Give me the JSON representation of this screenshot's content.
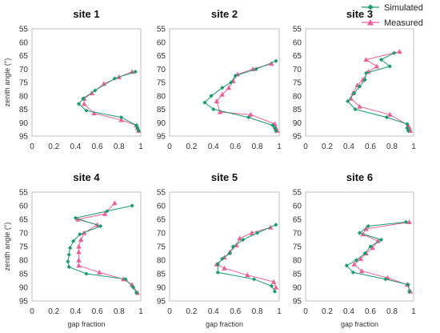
{
  "chart_data": [
    {
      "type": "line",
      "title": "site 1",
      "xlabel": "",
      "ylabel": "zenith angle (°)",
      "xlim": [
        0,
        1
      ],
      "ylim": [
        95,
        55
      ],
      "y_inverted": true,
      "xticks": [
        "0",
        "0.2",
        "0.4",
        "0.6",
        "0.8",
        "1"
      ],
      "yticks": [
        "55",
        "60",
        "65",
        "70",
        "75",
        "80",
        "85",
        "90",
        "95"
      ],
      "series": [
        {
          "name": "Simulated",
          "marker": "diamond",
          "color": "#1a9a6e",
          "points": [
            [
              0.95,
              71
            ],
            [
              0.76,
              73.5
            ],
            [
              0.58,
              78
            ],
            [
              0.47,
              81
            ],
            [
              0.43,
              83
            ],
            [
              0.5,
              85.5
            ],
            [
              0.82,
              88
            ],
            [
              0.96,
              91
            ],
            [
              0.97,
              92
            ],
            [
              0.98,
              93
            ]
          ]
        },
        {
          "name": "Measured",
          "marker": "triangle",
          "color": "#e8609a",
          "points": [
            [
              0.92,
              71
            ],
            [
              0.8,
              73
            ],
            [
              0.66,
              75.5
            ],
            [
              0.55,
              79
            ],
            [
              0.48,
              81
            ],
            [
              0.48,
              83
            ],
            [
              0.57,
              86.5
            ],
            [
              0.82,
              89
            ],
            [
              0.96,
              91
            ],
            [
              0.97,
              92
            ],
            [
              0.98,
              93
            ]
          ]
        }
      ]
    },
    {
      "type": "line",
      "title": "site 2",
      "xlabel": "",
      "ylabel": "",
      "xlim": [
        0,
        1
      ],
      "ylim": [
        95,
        55
      ],
      "y_inverted": true,
      "xticks": [
        "0",
        "0.2",
        "0.4",
        "0.6",
        "0.8",
        "1"
      ],
      "yticks": [
        "55",
        "60",
        "65",
        "70",
        "75",
        "80",
        "85",
        "90",
        "95"
      ],
      "series": [
        {
          "name": "Simulated",
          "marker": "diamond",
          "color": "#1a9a6e",
          "points": [
            [
              0.97,
              67
            ],
            [
              0.79,
              70
            ],
            [
              0.6,
              72.5
            ],
            [
              0.56,
              75
            ],
            [
              0.48,
              77
            ],
            [
              0.38,
              80
            ],
            [
              0.32,
              82.5
            ],
            [
              0.4,
              85
            ],
            [
              0.72,
              88
            ],
            [
              0.94,
              91
            ],
            [
              0.96,
              92
            ],
            [
              0.97,
              93
            ]
          ]
        },
        {
          "name": "Measured",
          "marker": "triangle",
          "color": "#e8609a",
          "points": [
            [
              0.93,
              68
            ],
            [
              0.76,
              70
            ],
            [
              0.62,
              72
            ],
            [
              0.58,
              74.5
            ],
            [
              0.54,
              77
            ],
            [
              0.48,
              79.5
            ],
            [
              0.43,
              82
            ],
            [
              0.46,
              86
            ],
            [
              0.74,
              87
            ],
            [
              0.96,
              90.5
            ],
            [
              0.97,
              92
            ],
            [
              0.98,
              93
            ]
          ]
        }
      ]
    },
    {
      "type": "line",
      "title": "site 3",
      "xlabel": "",
      "ylabel": "",
      "xlim": [
        0,
        1
      ],
      "ylim": [
        95,
        55
      ],
      "y_inverted": true,
      "xticks": [
        "0",
        "0.2",
        "0.4",
        "0.6",
        "0.8",
        "1"
      ],
      "yticks": [
        "55",
        "60",
        "65",
        "70",
        "75",
        "80",
        "85",
        "90",
        "95"
      ],
      "series": [
        {
          "name": "Simulated",
          "marker": "diamond",
          "color": "#1a9a6e",
          "points": [
            [
              0.82,
              64
            ],
            [
              0.7,
              66.5
            ],
            [
              0.78,
              69
            ],
            [
              0.56,
              71.5
            ],
            [
              0.55,
              74
            ],
            [
              0.5,
              76.5
            ],
            [
              0.45,
              79
            ],
            [
              0.39,
              82
            ],
            [
              0.46,
              85
            ],
            [
              0.75,
              88
            ],
            [
              0.94,
              90.5
            ],
            [
              0.94,
              92
            ],
            [
              0.95,
              93
            ]
          ]
        },
        {
          "name": "Measured",
          "marker": "triangle",
          "color": "#e8609a",
          "points": [
            [
              0.87,
              63.5
            ],
            [
              0.56,
              66.5
            ],
            [
              0.66,
              69
            ],
            [
              0.58,
              71
            ],
            [
              0.53,
              74
            ],
            [
              0.48,
              76
            ],
            [
              0.44,
              79
            ],
            [
              0.42,
              81
            ],
            [
              0.5,
              84
            ],
            [
              0.78,
              87
            ],
            [
              0.95,
              91
            ],
            [
              0.96,
              92
            ],
            [
              0.97,
              93
            ]
          ]
        }
      ]
    },
    {
      "type": "line",
      "title": "site 4",
      "xlabel": "gap fraction",
      "ylabel": "zenith angle (°)",
      "xlim": [
        0,
        1
      ],
      "ylim": [
        95,
        55
      ],
      "y_inverted": true,
      "xticks": [
        "0",
        "0.2",
        "0.4",
        "0.6",
        "0.8",
        "1"
      ],
      "yticks": [
        "55",
        "60",
        "65",
        "70",
        "75",
        "80",
        "85",
        "90",
        "95"
      ],
      "series": [
        {
          "name": "Simulated",
          "marker": "diamond",
          "color": "#1a9a6e",
          "points": [
            [
              0.92,
              60
            ],
            [
              0.69,
              62
            ],
            [
              0.4,
              64.5
            ],
            [
              0.63,
              67.5
            ],
            [
              0.44,
              70.5
            ],
            [
              0.38,
              73
            ],
            [
              0.35,
              75.5
            ],
            [
              0.34,
              78
            ],
            [
              0.33,
              80.5
            ],
            [
              0.34,
              82.5
            ],
            [
              0.5,
              85
            ],
            [
              0.86,
              87
            ],
            [
              0.93,
              90
            ],
            [
              0.96,
              92
            ]
          ]
        },
        {
          "name": "Measured",
          "marker": "triangle",
          "color": "#e8609a",
          "points": [
            [
              0.76,
              59
            ],
            [
              0.67,
              63
            ],
            [
              0.42,
              65
            ],
            [
              0.6,
              67
            ],
            [
              0.48,
              70
            ],
            [
              0.45,
              72.5
            ],
            [
              0.43,
              75
            ],
            [
              0.43,
              77
            ],
            [
              0.43,
              80
            ],
            [
              0.43,
              82
            ],
            [
              0.62,
              84.5
            ],
            [
              0.84,
              87
            ],
            [
              0.92,
              89
            ],
            [
              0.97,
              92
            ]
          ]
        }
      ]
    },
    {
      "type": "line",
      "title": "site 5",
      "xlabel": "gap fraction",
      "ylabel": "",
      "xlim": [
        0,
        1
      ],
      "ylim": [
        95,
        55
      ],
      "y_inverted": true,
      "xticks": [
        "0",
        "0.2",
        "0.4",
        "0.6",
        "0.8",
        "1"
      ],
      "yticks": [
        "55",
        "60",
        "65",
        "70",
        "75",
        "80",
        "85",
        "90",
        "95"
      ],
      "series": [
        {
          "name": "Simulated",
          "marker": "diamond",
          "color": "#1a9a6e",
          "points": [
            [
              0.97,
              67
            ],
            [
              0.8,
              70
            ],
            [
              0.67,
              72.5
            ],
            [
              0.58,
              75
            ],
            [
              0.55,
              77.5
            ],
            [
              0.48,
              79.5
            ],
            [
              0.44,
              81.5
            ],
            [
              0.44,
              84.5
            ],
            [
              0.77,
              87
            ],
            [
              0.93,
              89.5
            ],
            [
              0.96,
              91.5
            ]
          ]
        },
        {
          "name": "Measured",
          "marker": "triangle",
          "color": "#e8609a",
          "points": [
            [
              0.92,
              68
            ],
            [
              0.75,
              70
            ],
            [
              0.64,
              72
            ],
            [
              0.61,
              74.5
            ],
            [
              0.55,
              77
            ],
            [
              0.5,
              79
            ],
            [
              0.43,
              81.5
            ],
            [
              0.5,
              83
            ],
            [
              0.71,
              85.5
            ],
            [
              0.95,
              88
            ],
            [
              0.97,
              90
            ]
          ]
        }
      ]
    },
    {
      "type": "line",
      "title": "site 6",
      "xlabel": "gap fraction",
      "ylabel": "",
      "xlim": [
        0,
        1
      ],
      "ylim": [
        95,
        55
      ],
      "y_inverted": true,
      "xticks": [
        "0",
        "0.2",
        "0.4",
        "0.6",
        "0.8",
        "1"
      ],
      "yticks": [
        "55",
        "60",
        "65",
        "70",
        "75",
        "80",
        "85",
        "90",
        "95"
      ],
      "series": [
        {
          "name": "Simulated",
          "marker": "diamond",
          "color": "#1a9a6e",
          "points": [
            [
              0.93,
              66
            ],
            [
              0.58,
              67.5
            ],
            [
              0.5,
              70
            ],
            [
              0.7,
              72.5
            ],
            [
              0.6,
              75
            ],
            [
              0.55,
              77.5
            ],
            [
              0.47,
              80
            ],
            [
              0.38,
              82
            ],
            [
              0.44,
              84.5
            ],
            [
              0.74,
              87
            ],
            [
              0.95,
              89
            ],
            [
              0.96,
              91.5
            ]
          ]
        },
        {
          "name": "Measured",
          "marker": "triangle",
          "color": "#e8609a",
          "points": [
            [
              0.96,
              66
            ],
            [
              0.56,
              68.5
            ],
            [
              0.53,
              70.5
            ],
            [
              0.67,
              73
            ],
            [
              0.62,
              75.5
            ],
            [
              0.56,
              77.5
            ],
            [
              0.51,
              79.5
            ],
            [
              0.45,
              81.5
            ],
            [
              0.52,
              84
            ],
            [
              0.76,
              86.5
            ],
            [
              0.94,
              89
            ],
            [
              0.97,
              91.5
            ]
          ]
        }
      ]
    }
  ],
  "legend": {
    "position": "top-right",
    "items": [
      {
        "label": "Simulated",
        "color": "#1a9a6e",
        "marker": "diamond"
      },
      {
        "label": "Measured",
        "color": "#e8609a",
        "marker": "triangle"
      }
    ]
  }
}
